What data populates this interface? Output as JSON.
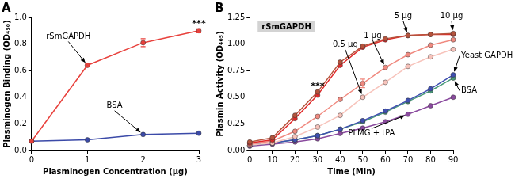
{
  "chart_data": [
    {
      "type": "line",
      "title": "A",
      "x_label": "Plasminogen Concentration (μg)",
      "y_label": "Plasminogen Binding (OD₄₅₀)",
      "x": [
        0,
        1,
        2,
        3
      ],
      "marker": "circle",
      "line_style": "solid",
      "series": [
        {
          "name": "rSmGAPDH",
          "color": "#e8413c",
          "values": [
            0.07,
            0.64,
            0.81,
            0.9
          ],
          "errors": [
            0,
            0.01,
            0.03,
            0.015
          ]
        },
        {
          "name": "BSA",
          "color": "#3b4aa8",
          "values": [
            0.07,
            0.08,
            0.12,
            0.13
          ]
        }
      ],
      "xlim": [
        0,
        3
      ],
      "xticks": [
        0,
        1,
        2,
        3
      ],
      "ylim": [
        0,
        1
      ],
      "yticks": [
        {
          "value": 0,
          "label": "0.0"
        },
        {
          "value": 0.2,
          "label": "0.2"
        },
        {
          "value": 0.4,
          "label": "0.4"
        },
        {
          "value": 0.6,
          "label": "0.6"
        },
        {
          "value": 0.8,
          "label": "0.8"
        },
        {
          "value": 1,
          "label": "1.0"
        }
      ],
      "grid": false,
      "annotations": [
        {
          "text": "***",
          "x": 3,
          "y": 0.95
        }
      ]
    },
    {
      "type": "line",
      "title": "B",
      "subtitle": "rSmGAPDH",
      "x_label": "Time (Min)",
      "y_label": "Plasmin Activity (OD₄₀₅)",
      "x": [
        0,
        10,
        20,
        30,
        40,
        50,
        60,
        70,
        80,
        90
      ],
      "marker": "circle",
      "line_style": "solid",
      "series": [
        {
          "name": "10 μg",
          "color": "#b5533c",
          "values": [
            0.08,
            0.12,
            0.33,
            0.55,
            0.83,
            0.98,
            1.05,
            1.08,
            1.09,
            1.1
          ]
        },
        {
          "name": "5 μg",
          "color": "#e02a2a",
          "values": [
            0.07,
            0.1,
            0.3,
            0.52,
            0.8,
            0.97,
            1.04,
            1.08,
            1.09,
            1.09
          ]
        },
        {
          "name": "1 μg",
          "color": "#f08a80",
          "values": [
            0.06,
            0.09,
            0.18,
            0.32,
            0.48,
            0.63,
            0.78,
            0.9,
            0.99,
            1.04
          ],
          "errors": [
            0,
            0,
            0,
            0,
            0,
            0.04,
            0,
            0,
            0,
            0
          ]
        },
        {
          "name": "0.5 μg",
          "color": "#f7c3bb",
          "values": [
            0.05,
            0.07,
            0.13,
            0.22,
            0.33,
            0.5,
            0.64,
            0.79,
            0.88,
            0.95
          ]
        },
        {
          "name": "Yeast GAPDH",
          "color": "#3f4fb0",
          "values": [
            0.05,
            0.07,
            0.1,
            0.14,
            0.2,
            0.28,
            0.37,
            0.47,
            0.58,
            0.71
          ]
        },
        {
          "name": "BSA",
          "color": "#4a9a7a",
          "values": [
            0.05,
            0.07,
            0.1,
            0.14,
            0.2,
            0.27,
            0.36,
            0.46,
            0.56,
            0.68
          ]
        },
        {
          "name": "PLMG + tPA",
          "color": "#8a4a9e",
          "values": [
            0.04,
            0.06,
            0.08,
            0.11,
            0.16,
            0.21,
            0.27,
            0.34,
            0.42,
            0.5
          ]
        }
      ],
      "xlim": [
        0,
        90
      ],
      "xticks": [
        0,
        10,
        20,
        30,
        40,
        50,
        60,
        70,
        80,
        90
      ],
      "ylim": [
        0,
        1.25
      ],
      "yticks": [
        {
          "value": 0,
          "label": "0.00"
        },
        {
          "value": 0.25,
          "label": "0.25"
        },
        {
          "value": 0.5,
          "label": "0.50"
        },
        {
          "value": 0.75,
          "label": "0.75"
        },
        {
          "value": 1,
          "label": "1.00"
        },
        {
          "value": 1.25,
          "label": "1.25"
        }
      ],
      "grid": false,
      "annotations": [
        {
          "text": "***",
          "x": 30,
          "y": 0.6
        }
      ]
    }
  ]
}
